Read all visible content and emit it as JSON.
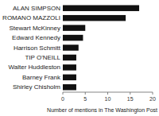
{
  "chart_data": {
    "type": "bar",
    "orientation": "horizontal",
    "categories": [
      "Shirley Chisholm",
      "Barney Frank",
      "Walter Huddleston",
      "TIP O'NEILL",
      "Harrison Schmitt",
      "Edward Kennedy",
      "Stewart McKinney",
      "ROMANO MAZZOLI",
      "ALAN SIMPSON"
    ],
    "values": [
      3,
      3,
      3,
      3,
      3.5,
      4.5,
      5,
      14,
      17
    ],
    "color": "#111111",
    "xlabel": "Number of mentions in The Washington Post",
    "xlim": [
      0,
      20
    ],
    "xticks": [
      0,
      5,
      10,
      15,
      20
    ],
    "grid": false
  }
}
